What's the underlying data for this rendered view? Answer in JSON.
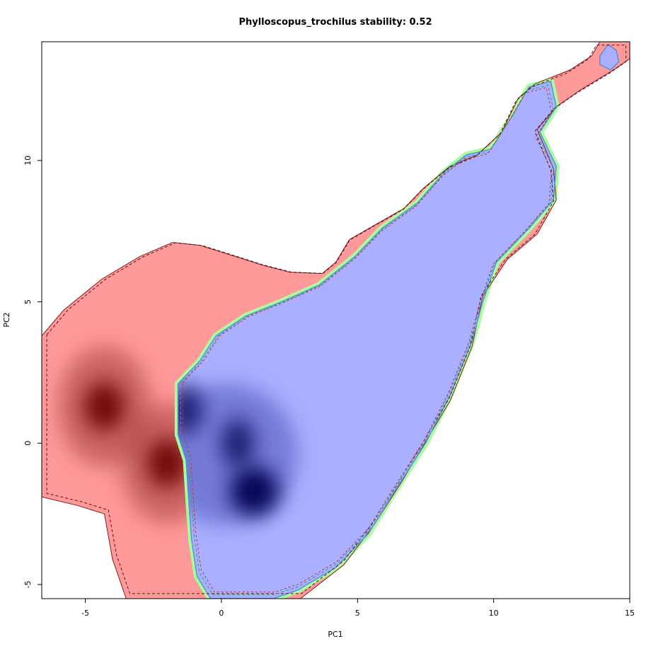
{
  "chart_data": {
    "type": "heatmap",
    "title": "Phylloscopus_trochilus stability: 0.52",
    "xlabel": "PC1",
    "ylabel": "PC2",
    "xlim": [
      -6.6,
      15
    ],
    "ylim": [
      -5.5,
      14.2
    ],
    "x_ticks": [
      {
        "value": -5,
        "label": "-5"
      },
      {
        "value": 0,
        "label": "0"
      },
      {
        "value": 5,
        "label": "5"
      },
      {
        "value": 10,
        "label": "10"
      },
      {
        "value": 15,
        "label": "15"
      }
    ],
    "y_ticks": [
      {
        "value": -5,
        "label": "-5"
      },
      {
        "value": 0,
        "label": "0"
      },
      {
        "value": 5,
        "label": "5"
      },
      {
        "value": 10,
        "label": "10"
      }
    ],
    "grid": false,
    "legend": "none",
    "series": [
      {
        "role": "environment-1 density (red)",
        "color": "#ff9a9a",
        "dark_color": "#6a0000",
        "density_peaks": [
          [
            -4.3,
            1.3
          ],
          [
            -2.0,
            -0.7
          ]
        ],
        "outline": [
          [
            -6.6,
            3.8
          ],
          [
            -5.8,
            4.7
          ],
          [
            -4.4,
            5.8
          ],
          [
            -3.0,
            6.6
          ],
          [
            -1.8,
            7.1
          ],
          [
            -0.8,
            7.0
          ],
          [
            0.2,
            6.7
          ],
          [
            1.5,
            6.3
          ],
          [
            2.5,
            6.05
          ],
          [
            3.7,
            6.0
          ],
          [
            4.2,
            6.4
          ],
          [
            4.7,
            7.2
          ],
          [
            5.6,
            7.7
          ],
          [
            6.7,
            8.3
          ],
          [
            7.4,
            9.0
          ],
          [
            8.4,
            9.8
          ],
          [
            9.4,
            10.2
          ],
          [
            10.3,
            11.0
          ],
          [
            10.9,
            12.2
          ],
          [
            11.5,
            12.7
          ],
          [
            12.8,
            13.2
          ],
          [
            13.6,
            13.7
          ],
          [
            13.9,
            14.2
          ],
          [
            15.0,
            14.2
          ],
          [
            15.0,
            13.6
          ],
          [
            14.4,
            13.2
          ],
          [
            13.2,
            12.5
          ],
          [
            12.3,
            11.9
          ],
          [
            11.6,
            11.1
          ],
          [
            12.2,
            9.7
          ],
          [
            12.3,
            8.6
          ],
          [
            11.6,
            7.4
          ],
          [
            10.5,
            6.5
          ],
          [
            9.6,
            5.2
          ],
          [
            9.2,
            3.4
          ],
          [
            8.4,
            1.5
          ],
          [
            6.6,
            -1.4
          ],
          [
            5.6,
            -2.9
          ],
          [
            4.5,
            -4.3
          ],
          [
            2.9,
            -5.5
          ],
          [
            -3.5,
            -5.5
          ],
          [
            -4.0,
            -4.1
          ],
          [
            -4.3,
            -2.5
          ],
          [
            -5.3,
            -2.2
          ],
          [
            -6.6,
            -1.9
          ]
        ]
      },
      {
        "role": "environment-2 density (blue)",
        "color": "#aab0ff",
        "dark_color": "#000050",
        "density_peaks": [
          [
            1.2,
            -1.7
          ],
          [
            -1.3,
            1.2
          ],
          [
            0.6,
            0.0
          ]
        ],
        "outline": [
          [
            -1.6,
            2.1
          ],
          [
            -0.8,
            2.9
          ],
          [
            -0.2,
            3.8
          ],
          [
            0.9,
            4.5
          ],
          [
            2.2,
            5.0
          ],
          [
            3.6,
            5.6
          ],
          [
            4.9,
            6.6
          ],
          [
            5.9,
            7.6
          ],
          [
            7.2,
            8.5
          ],
          [
            8.2,
            9.6
          ],
          [
            9.0,
            10.2
          ],
          [
            9.9,
            10.4
          ],
          [
            10.7,
            11.6
          ],
          [
            11.3,
            12.6
          ],
          [
            12.1,
            12.8
          ],
          [
            12.3,
            11.9
          ],
          [
            11.7,
            11.0
          ],
          [
            12.3,
            9.8
          ],
          [
            12.2,
            8.6
          ],
          [
            11.3,
            7.6
          ],
          [
            10.1,
            6.4
          ],
          [
            9.6,
            5.0
          ],
          [
            9.2,
            3.6
          ],
          [
            8.4,
            1.7
          ],
          [
            7.5,
            0.0
          ],
          [
            6.3,
            -1.8
          ],
          [
            5.4,
            -3.2
          ],
          [
            4.2,
            -4.4
          ],
          [
            2.8,
            -5.2
          ],
          [
            1.9,
            -5.5
          ],
          [
            -0.4,
            -5.5
          ],
          [
            -0.9,
            -4.7
          ],
          [
            -1.1,
            -3.4
          ],
          [
            -1.2,
            -2.1
          ],
          [
            -1.3,
            -0.6
          ],
          [
            -1.6,
            0.3
          ],
          [
            -1.6,
            1.1
          ]
        ]
      },
      {
        "role": "overlap region (green)",
        "color": "#a6ff9a"
      },
      {
        "role": "top-right blue islet",
        "color": "#aab0ff",
        "outline": [
          [
            13.9,
            13.7
          ],
          [
            14.2,
            14.1
          ],
          [
            14.5,
            13.9
          ],
          [
            14.6,
            13.5
          ],
          [
            14.3,
            13.2
          ],
          [
            13.9,
            13.4
          ]
        ]
      }
    ]
  }
}
